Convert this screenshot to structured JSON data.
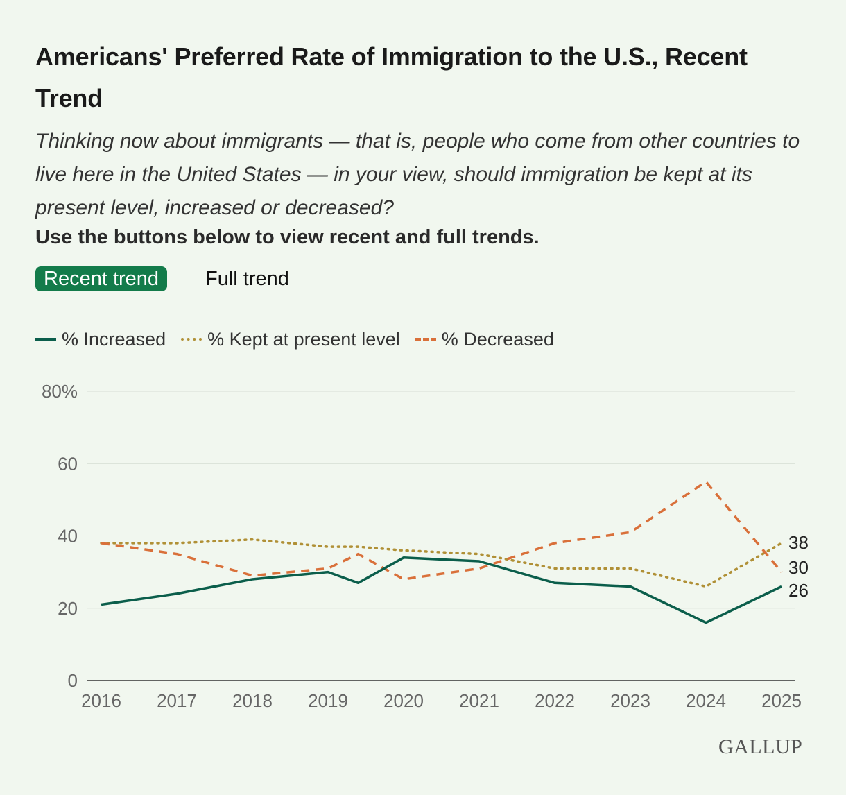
{
  "header": {
    "title": "Americans' Preferred Rate of Immigration to the U.S., Recent Trend",
    "subtitle": "Thinking now about immigrants — that is, people who come from other countries to live here in the United States — in your view, should immigration be kept at its present level, increased or decreased?",
    "instruction": "Use the buttons below to view recent and full trends."
  },
  "buttons": {
    "recent": "Recent trend",
    "full": "Full trend"
  },
  "legend": {
    "increased": "% Increased",
    "kept": "% Kept at present level",
    "decreased": "% Decreased"
  },
  "colors": {
    "increased": "#0b5e4b",
    "kept": "#b09036",
    "decreased": "#d9703a",
    "accent": "#137b4a"
  },
  "brand": "GALLUP",
  "chart_data": {
    "type": "line",
    "title": "Americans' Preferred Rate of Immigration to the U.S., Recent Trend",
    "xlabel": "",
    "ylabel": "",
    "ylim": [
      0,
      80
    ],
    "yticks": [
      0,
      20,
      40,
      60,
      80
    ],
    "ytick_labels": [
      "0",
      "20",
      "40",
      "60",
      "80%"
    ],
    "xticks": [
      2016,
      2017,
      2018,
      2019,
      2020,
      2021,
      2022,
      2023,
      2024,
      2025
    ],
    "xtick_labels": [
      "2016",
      "2017",
      "2018",
      "2019",
      "2020",
      "2021",
      "2022",
      "2023",
      "2024",
      "2025"
    ],
    "grid": true,
    "legend_position": "top-left",
    "series": [
      {
        "name": "% Increased",
        "key": "increased",
        "dash": "solid",
        "x": [
          2016,
          2017,
          2018,
          2019,
          2019.4,
          2020,
          2021,
          2022,
          2023,
          2024,
          2025
        ],
        "values": [
          21,
          24,
          28,
          30,
          27,
          34,
          33,
          27,
          26,
          16,
          26
        ],
        "end_label": "26"
      },
      {
        "name": "% Kept at present level",
        "key": "kept",
        "dash": "dotted",
        "x": [
          2016,
          2017,
          2018,
          2019,
          2019.4,
          2020,
          2021,
          2022,
          2023,
          2024,
          2025
        ],
        "values": [
          38,
          38,
          39,
          37,
          37,
          36,
          35,
          31,
          31,
          26,
          38
        ],
        "end_label": "38"
      },
      {
        "name": "% Decreased",
        "key": "decreased",
        "dash": "dashed",
        "x": [
          2016,
          2017,
          2018,
          2019,
          2019.4,
          2020,
          2021,
          2022,
          2023,
          2024,
          2025
        ],
        "values": [
          38,
          35,
          29,
          31,
          35,
          28,
          31,
          38,
          41,
          55,
          30
        ],
        "end_label": "30"
      }
    ]
  }
}
